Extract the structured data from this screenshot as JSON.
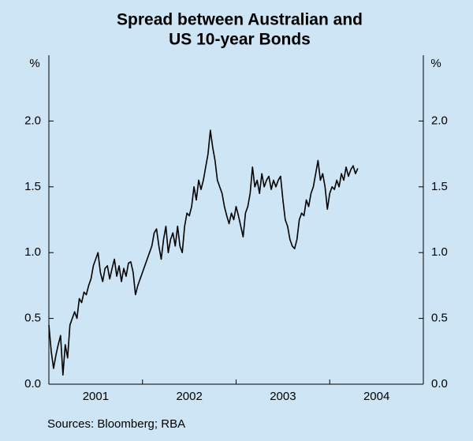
{
  "chart_data": {
    "type": "line",
    "title": [
      "Spread between Australian and",
      "US 10-year Bonds"
    ],
    "y_label": "%",
    "y2_label": "%",
    "source": "Sources: Bloomberg; RBA",
    "categories": [
      "2001",
      "2002",
      "2003",
      "2004"
    ],
    "xlim": [
      2001,
      2005
    ],
    "xticks": [
      2002,
      2003,
      2004
    ],
    "ylim": [
      0,
      2.5
    ],
    "yticks": [
      {
        "value": 0,
        "label": "0.0"
      },
      {
        "value": 0.5,
        "label": "0.5"
      },
      {
        "value": 1,
        "label": "1.0"
      },
      {
        "value": 1.5,
        "label": "1.5"
      },
      {
        "value": 2,
        "label": "2.0"
      }
    ],
    "y2lim": [
      0,
      2.5
    ],
    "y2ticks": [
      {
        "value": 0,
        "label": "0.0"
      },
      {
        "value": 0.5,
        "label": "0.5"
      },
      {
        "value": 1,
        "label": "1.0"
      },
      {
        "value": 1.5,
        "label": "1.5"
      },
      {
        "value": 2,
        "label": "2.0"
      }
    ],
    "color": "#000000",
    "x": [
      2001,
      2001.025,
      2001.05,
      2001.075,
      2001.1,
      2001.125,
      2001.15,
      2001.175,
      2001.2,
      2001.225,
      2001.25,
      2001.275,
      2001.3,
      2001.325,
      2001.35,
      2001.375,
      2001.4,
      2001.425,
      2001.45,
      2001.475,
      2001.5,
      2001.525,
      2001.55,
      2001.575,
      2001.6,
      2001.625,
      2001.65,
      2001.675,
      2001.7,
      2001.725,
      2001.75,
      2001.775,
      2001.8,
      2001.825,
      2001.85,
      2001.875,
      2001.9,
      2001.925,
      2001.95,
      2001.975,
      2002,
      2002.025,
      2002.05,
      2002.075,
      2002.1,
      2002.125,
      2002.15,
      2002.175,
      2002.2,
      2002.225,
      2002.25,
      2002.275,
      2002.3,
      2002.325,
      2002.35,
      2002.375,
      2002.4,
      2002.425,
      2002.45,
      2002.475,
      2002.5,
      2002.525,
      2002.55,
      2002.575,
      2002.6,
      2002.625,
      2002.65,
      2002.675,
      2002.7,
      2002.725,
      2002.75,
      2002.775,
      2002.8,
      2002.825,
      2002.85,
      2002.875,
      2002.9,
      2002.925,
      2002.95,
      2002.975,
      2003,
      2003.025,
      2003.05,
      2003.075,
      2003.1,
      2003.125,
      2003.15,
      2003.175,
      2003.2,
      2003.225,
      2003.25,
      2003.275,
      2003.3,
      2003.325,
      2003.35,
      2003.375,
      2003.4,
      2003.425,
      2003.45,
      2003.475,
      2003.5,
      2003.525,
      2003.55,
      2003.575,
      2003.6,
      2003.625,
      2003.65,
      2003.675,
      2003.7,
      2003.725,
      2003.75,
      2003.775,
      2003.8,
      2003.825,
      2003.85,
      2003.875,
      2003.9,
      2003.925,
      2003.95,
      2003.975,
      2004,
      2004.025,
      2004.05,
      2004.075,
      2004.1,
      2004.125,
      2004.15,
      2004.175,
      2004.2,
      2004.225,
      2004.25,
      2004.275,
      2004.3
    ],
    "values": [
      0.45,
      0.25,
      0.12,
      0.22,
      0.3,
      0.37,
      0.07,
      0.3,
      0.2,
      0.45,
      0.5,
      0.55,
      0.5,
      0.65,
      0.62,
      0.7,
      0.68,
      0.75,
      0.8,
      0.9,
      0.95,
      1.0,
      0.85,
      0.78,
      0.88,
      0.9,
      0.8,
      0.88,
      0.95,
      0.82,
      0.9,
      0.78,
      0.88,
      0.82,
      0.92,
      0.93,
      0.85,
      0.68,
      0.75,
      0.8,
      0.85,
      0.9,
      0.95,
      1.0,
      1.05,
      1.15,
      1.18,
      1.05,
      0.95,
      1.1,
      1.2,
      1.0,
      1.1,
      1.15,
      1.05,
      1.2,
      1.05,
      1.0,
      1.2,
      1.3,
      1.28,
      1.35,
      1.5,
      1.4,
      1.55,
      1.48,
      1.55,
      1.65,
      1.75,
      1.93,
      1.8,
      1.7,
      1.55,
      1.5,
      1.45,
      1.35,
      1.28,
      1.22,
      1.3,
      1.25,
      1.35,
      1.28,
      1.2,
      1.12,
      1.3,
      1.35,
      1.45,
      1.65,
      1.5,
      1.55,
      1.45,
      1.6,
      1.5,
      1.55,
      1.58,
      1.48,
      1.55,
      1.5,
      1.55,
      1.58,
      1.4,
      1.25,
      1.2,
      1.1,
      1.05,
      1.03,
      1.1,
      1.25,
      1.3,
      1.28,
      1.4,
      1.35,
      1.45,
      1.5,
      1.6,
      1.7,
      1.55,
      1.6,
      1.5,
      1.33,
      1.45,
      1.5,
      1.48,
      1.55,
      1.5,
      1.6,
      1.55,
      1.65,
      1.58,
      1.63,
      1.66,
      1.6,
      1.64
    ]
  }
}
